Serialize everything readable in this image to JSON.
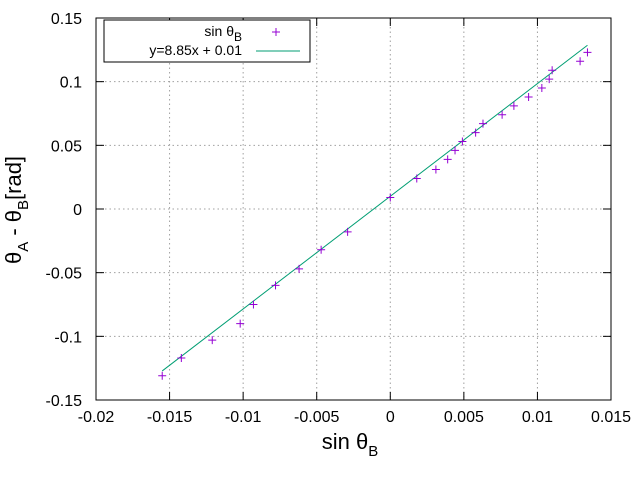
{
  "chart_data": {
    "type": "scatter",
    "xlabel": {
      "main": "sin θ",
      "sub": "B"
    },
    "ylabel": {
      "p1": "θ",
      "s1": "A",
      "p2": " - θ",
      "s2": "B",
      "p3": "[rad]"
    },
    "xlim": [
      -0.02,
      0.015
    ],
    "ylim": [
      -0.15,
      0.15
    ],
    "x_ticks": [
      -0.02,
      -0.015,
      -0.01,
      -0.005,
      0,
      0.005,
      0.01,
      0.015
    ],
    "y_ticks": [
      -0.15,
      -0.1,
      -0.05,
      0,
      0.05,
      0.1,
      0.15
    ],
    "x_tick_labels": [
      "-0.02",
      "-0.015",
      "-0.01",
      "-0.005",
      "0",
      "0.005",
      "0.01",
      "0.015"
    ],
    "y_tick_labels": [
      "-0.15",
      "-0.1",
      "-0.05",
      "0",
      "0.05",
      "0.1",
      "0.15"
    ],
    "grid": true,
    "legend_position": "top-left",
    "series": [
      {
        "name": {
          "main": "sin θ",
          "sub": "B"
        },
        "kind": "points",
        "marker": "+",
        "color": "#9400d3",
        "x": [
          -0.0155,
          -0.0142,
          -0.0121,
          -0.0102,
          -0.0093,
          -0.0078,
          -0.0062,
          -0.0047,
          -0.0029,
          0.0,
          0.0018,
          0.0031,
          0.0039,
          0.0044,
          0.0049,
          0.0058,
          0.0063,
          0.0076,
          0.0084,
          0.0094,
          0.0103,
          0.0108,
          0.011,
          0.0129,
          0.0134
        ],
        "y": [
          -0.131,
          -0.117,
          -0.103,
          -0.09,
          -0.075,
          -0.06,
          -0.047,
          -0.032,
          -0.018,
          0.009,
          0.024,
          0.031,
          0.039,
          0.046,
          0.053,
          0.06,
          0.067,
          0.074,
          0.081,
          0.088,
          0.095,
          0.102,
          0.109,
          0.116,
          0.123
        ]
      },
      {
        "name": "y=8.85x + 0.01",
        "kind": "line",
        "color": "#009e73",
        "slope": 8.85,
        "intercept": 0.01,
        "x_range": [
          -0.0155,
          0.0134
        ]
      }
    ]
  }
}
